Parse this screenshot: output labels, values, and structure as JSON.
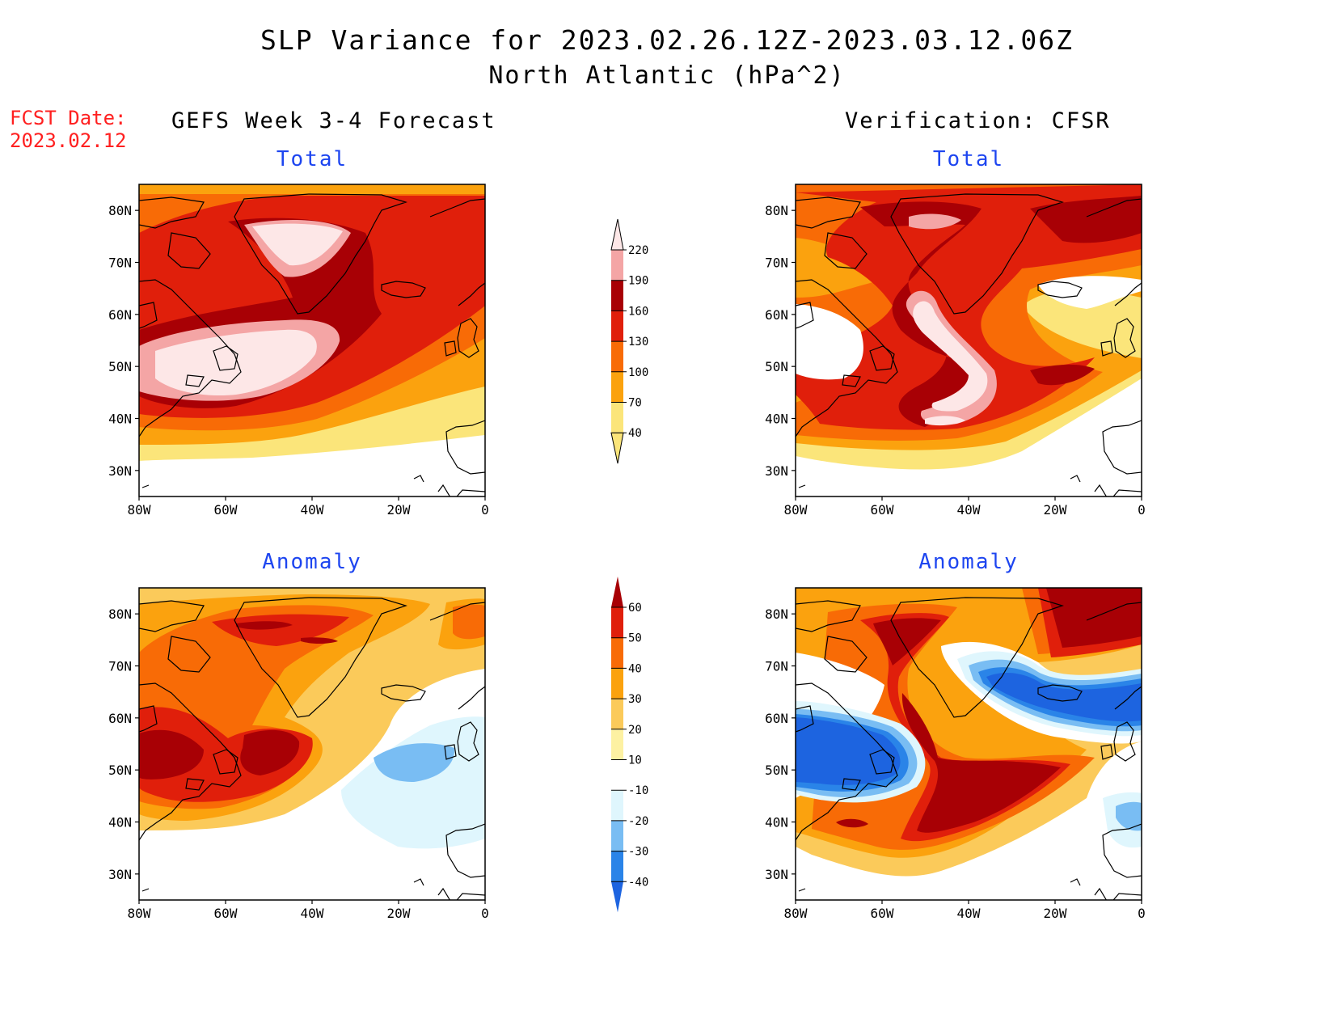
{
  "header": {
    "title": "SLP Variance for 2023.02.26.12Z-2023.03.12.06Z",
    "subtitle": "North Atlantic (hPa^2)"
  },
  "fcst": {
    "label": "FCST Date:",
    "date": "2023.02.12"
  },
  "columns": {
    "left": "GEFS Week 3-4 Forecast",
    "right": "Verification: CFSR"
  },
  "panels": {
    "forecast_total": "Total",
    "verif_total": "Total",
    "forecast_anomaly": "Anomaly",
    "verif_anomaly": "Anomaly"
  },
  "axes": {
    "lat_labels": [
      "80N",
      "70N",
      "60N",
      "50N",
      "40N",
      "30N"
    ],
    "lat_values": [
      80,
      70,
      60,
      50,
      40,
      30
    ],
    "lon_labels": [
      "80W",
      "60W",
      "40W",
      "20W",
      "0"
    ],
    "lon_values": [
      -80,
      -60,
      -40,
      -20,
      0
    ],
    "lat_range": [
      25,
      85
    ],
    "lon_range": [
      -80,
      0
    ]
  },
  "colorbars": {
    "total": {
      "levels": [
        "40",
        "70",
        "100",
        "130",
        "160",
        "190",
        "220"
      ],
      "colors": [
        "#fbe57a",
        "#fba20e",
        "#f86b06",
        "#e01f0b",
        "#a80005",
        "#f4a5a5",
        "#fde7e7"
      ]
    },
    "anomaly": {
      "levels": [
        "-40",
        "-30",
        "-20",
        "-10",
        "10",
        "20",
        "30",
        "40",
        "50",
        "60"
      ],
      "colors": [
        "#1d64e0",
        "#2a84e8",
        "#79bdf3",
        "#dff6fd",
        "#ffffff",
        "#fdf1a2",
        "#fbca5a",
        "#fba20e",
        "#f86b06",
        "#e01f0b",
        "#a80005"
      ]
    }
  }
}
